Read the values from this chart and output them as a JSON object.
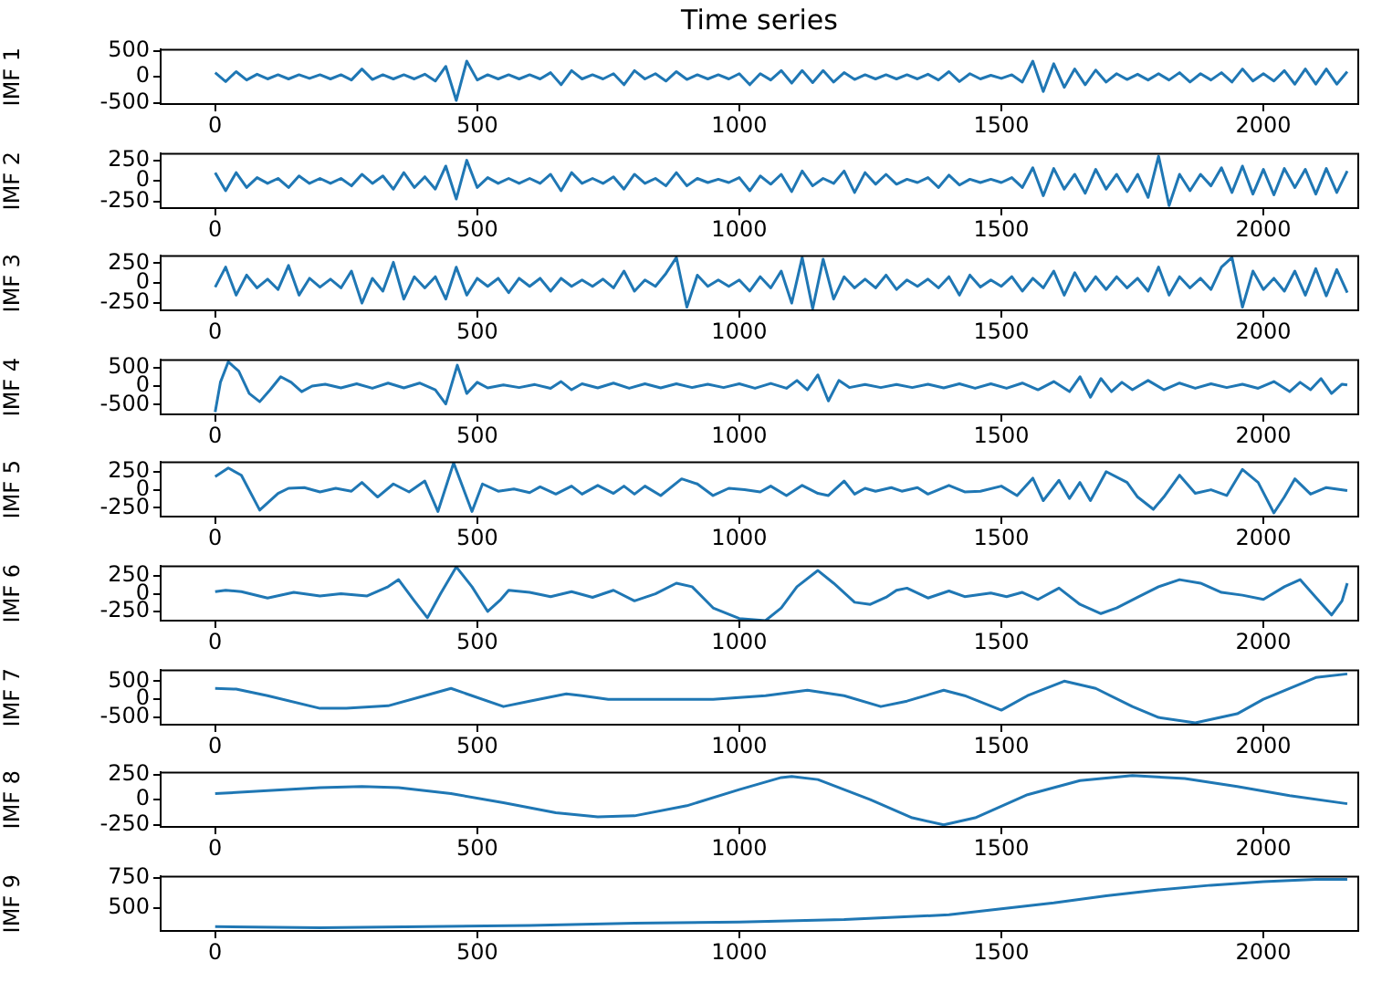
{
  "chart_data": [
    {
      "type": "line",
      "title": "Time series",
      "ylabel": "IMF 1",
      "color": "#1f77b4",
      "xlim": [
        -104,
        2181
      ],
      "xticks": [
        0,
        500,
        1000,
        1500,
        2000
      ],
      "ylim": [
        -520,
        520
      ],
      "yticks": [
        -500,
        0,
        500
      ],
      "x": [
        0,
        20,
        40,
        60,
        80,
        100,
        120,
        140,
        160,
        180,
        200,
        220,
        240,
        260,
        280,
        300,
        320,
        340,
        360,
        380,
        400,
        420,
        440,
        460,
        480,
        500,
        520,
        540,
        560,
        580,
        600,
        620,
        640,
        660,
        680,
        700,
        720,
        740,
        760,
        780,
        800,
        820,
        840,
        860,
        880,
        900,
        920,
        940,
        960,
        980,
        1000,
        1020,
        1040,
        1060,
        1080,
        1100,
        1120,
        1140,
        1160,
        1180,
        1200,
        1220,
        1240,
        1260,
        1280,
        1300,
        1320,
        1340,
        1360,
        1380,
        1400,
        1420,
        1440,
        1460,
        1480,
        1500,
        1520,
        1540,
        1560,
        1580,
        1600,
        1620,
        1640,
        1660,
        1680,
        1700,
        1720,
        1740,
        1760,
        1780,
        1800,
        1820,
        1840,
        1860,
        1880,
        1900,
        1920,
        1940,
        1960,
        1980,
        2000,
        2020,
        2040,
        2060,
        2080,
        2100,
        2120,
        2140,
        2160
      ],
      "values": [
        80,
        -90,
        100,
        -60,
        50,
        -40,
        40,
        -40,
        40,
        -30,
        40,
        -40,
        40,
        -60,
        150,
        -50,
        40,
        -40,
        40,
        -40,
        50,
        -80,
        200,
        -450,
        300,
        -60,
        40,
        -40,
        40,
        -40,
        40,
        -40,
        80,
        -150,
        120,
        -40,
        40,
        -40,
        60,
        -150,
        120,
        -40,
        60,
        -80,
        100,
        -50,
        40,
        -40,
        40,
        -40,
        60,
        -150,
        60,
        -60,
        120,
        -120,
        120,
        -110,
        120,
        -100,
        80,
        -50,
        40,
        -40,
        40,
        -40,
        40,
        -40,
        50,
        -60,
        100,
        -90,
        60,
        -40,
        30,
        -30,
        40,
        -100,
        300,
        -280,
        250,
        -200,
        150,
        -150,
        130,
        -100,
        60,
        -50,
        50,
        -60,
        60,
        -60,
        80,
        -100,
        60,
        -60,
        80,
        -100,
        150,
        -80,
        60,
        -80,
        120,
        -140,
        150,
        -140,
        150,
        -140,
        100
      ]
    },
    {
      "type": "line",
      "ylabel": "IMF 2",
      "color": "#1f77b4",
      "xlim": [
        -104,
        2181
      ],
      "xticks": [
        0,
        500,
        1000,
        1500,
        2000
      ],
      "ylim": [
        -330,
        330
      ],
      "yticks": [
        -250,
        0,
        250
      ],
      "x": [
        0,
        20,
        40,
        60,
        80,
        100,
        120,
        140,
        160,
        180,
        200,
        220,
        240,
        260,
        280,
        300,
        320,
        340,
        360,
        380,
        400,
        420,
        440,
        460,
        480,
        500,
        520,
        540,
        560,
        580,
        600,
        620,
        640,
        660,
        680,
        700,
        720,
        740,
        760,
        780,
        800,
        820,
        840,
        860,
        880,
        900,
        920,
        940,
        960,
        980,
        1000,
        1020,
        1040,
        1060,
        1080,
        1100,
        1120,
        1140,
        1160,
        1180,
        1200,
        1220,
        1240,
        1260,
        1280,
        1300,
        1320,
        1340,
        1360,
        1380,
        1400,
        1420,
        1440,
        1460,
        1480,
        1500,
        1520,
        1540,
        1560,
        1580,
        1600,
        1620,
        1640,
        1660,
        1680,
        1700,
        1720,
        1740,
        1760,
        1780,
        1800,
        1820,
        1840,
        1860,
        1880,
        1900,
        1920,
        1940,
        1960,
        1980,
        2000,
        2020,
        2040,
        2060,
        2080,
        2100,
        2120,
        2140,
        2160
      ],
      "values": [
        100,
        -120,
        100,
        -80,
        40,
        -30,
        30,
        -80,
        60,
        -30,
        30,
        -30,
        30,
        -60,
        80,
        -30,
        60,
        -100,
        100,
        -80,
        50,
        -100,
        180,
        -220,
        250,
        -80,
        40,
        -30,
        30,
        -30,
        30,
        -30,
        80,
        -120,
        100,
        -30,
        30,
        -30,
        50,
        -100,
        80,
        -30,
        30,
        -60,
        100,
        -60,
        30,
        -20,
        20,
        -20,
        40,
        -120,
        60,
        -40,
        80,
        -130,
        120,
        -60,
        30,
        -30,
        120,
        -140,
        100,
        -40,
        80,
        -40,
        20,
        -20,
        40,
        -80,
        70,
        -50,
        20,
        -20,
        20,
        -20,
        40,
        -80,
        160,
        -180,
        150,
        -100,
        80,
        -150,
        140,
        -100,
        80,
        -130,
        80,
        -200,
        300,
        -300,
        80,
        -120,
        80,
        -60,
        160,
        -140,
        180,
        -160,
        140,
        -170,
        150,
        -80,
        140,
        -160,
        150,
        -140,
        120
      ]
    },
    {
      "type": "line",
      "ylabel": "IMF 3",
      "color": "#1f77b4",
      "xlim": [
        -104,
        2181
      ],
      "xticks": [
        0,
        500,
        1000,
        1500,
        2000
      ],
      "ylim": [
        -340,
        340
      ],
      "yticks": [
        -250,
        0,
        250
      ],
      "x": [
        0,
        20,
        40,
        60,
        80,
        100,
        120,
        140,
        160,
        180,
        200,
        220,
        240,
        260,
        280,
        300,
        320,
        340,
        360,
        380,
        400,
        420,
        440,
        460,
        480,
        500,
        520,
        540,
        560,
        580,
        600,
        620,
        640,
        660,
        680,
        700,
        720,
        740,
        760,
        780,
        800,
        820,
        840,
        860,
        880,
        900,
        920,
        940,
        960,
        980,
        1000,
        1020,
        1040,
        1060,
        1080,
        1100,
        1120,
        1140,
        1160,
        1180,
        1200,
        1220,
        1240,
        1260,
        1280,
        1300,
        1320,
        1340,
        1360,
        1380,
        1400,
        1420,
        1440,
        1460,
        1480,
        1500,
        1520,
        1540,
        1560,
        1580,
        1600,
        1620,
        1640,
        1660,
        1680,
        1700,
        1720,
        1740,
        1760,
        1780,
        1800,
        1820,
        1840,
        1860,
        1880,
        1900,
        1920,
        1940,
        1960,
        1980,
        2000,
        2020,
        2040,
        2060,
        2080,
        2100,
        2120,
        2140,
        2160
      ],
      "values": [
        -50,
        200,
        -150,
        100,
        -60,
        50,
        -80,
        220,
        -150,
        60,
        -50,
        50,
        -60,
        150,
        -250,
        60,
        -100,
        260,
        -200,
        80,
        -60,
        80,
        -200,
        200,
        -150,
        60,
        -40,
        60,
        -120,
        60,
        -40,
        60,
        -100,
        60,
        -40,
        40,
        -40,
        50,
        -60,
        150,
        -100,
        40,
        -40,
        120,
        320,
        -300,
        100,
        -40,
        40,
        -40,
        40,
        -100,
        80,
        -60,
        150,
        -250,
        320,
        -320,
        300,
        -200,
        80,
        -60,
        50,
        -60,
        100,
        -80,
        40,
        -40,
        50,
        -60,
        80,
        -150,
        100,
        -50,
        40,
        -40,
        80,
        -100,
        60,
        -60,
        150,
        -150,
        130,
        -100,
        80,
        -80,
        80,
        -60,
        60,
        -100,
        200,
        -150,
        80,
        -60,
        60,
        -80,
        200,
        320,
        -300,
        150,
        -80,
        60,
        -100,
        150,
        -150,
        180,
        -160,
        170,
        -120
      ]
    },
    {
      "type": "line",
      "ylabel": "IMF 4",
      "color": "#1f77b4",
      "xlim": [
        -104,
        2181
      ],
      "xticks": [
        0,
        500,
        1000,
        1500,
        2000
      ],
      "ylim": [
        -760,
        700
      ],
      "yticks": [
        -500,
        0,
        500
      ],
      "x": [
        0,
        10,
        25,
        45,
        65,
        85,
        105,
        125,
        145,
        165,
        185,
        210,
        240,
        270,
        300,
        330,
        360,
        390,
        420,
        440,
        462,
        480,
        500,
        520,
        550,
        580,
        610,
        640,
        660,
        680,
        700,
        730,
        760,
        790,
        820,
        850,
        880,
        910,
        940,
        970,
        1000,
        1030,
        1060,
        1090,
        1110,
        1130,
        1150,
        1170,
        1190,
        1210,
        1240,
        1270,
        1300,
        1330,
        1360,
        1390,
        1420,
        1450,
        1480,
        1510,
        1540,
        1570,
        1600,
        1630,
        1650,
        1670,
        1690,
        1710,
        1730,
        1750,
        1780,
        1810,
        1840,
        1870,
        1900,
        1930,
        1960,
        1990,
        2020,
        2050,
        2070,
        2090,
        2110,
        2130,
        2150,
        2160
      ],
      "values": [
        -700,
        100,
        650,
        400,
        -200,
        -420,
        -100,
        250,
        100,
        -150,
        0,
        50,
        -50,
        60,
        -60,
        80,
        -50,
        80,
        -100,
        -480,
        560,
        -200,
        100,
        -50,
        30,
        -40,
        40,
        -60,
        120,
        -100,
        60,
        -50,
        80,
        -60,
        60,
        -50,
        60,
        -40,
        50,
        -40,
        60,
        -60,
        70,
        -60,
        150,
        -100,
        300,
        -400,
        150,
        -40,
        40,
        -40,
        40,
        -40,
        50,
        -50,
        60,
        -60,
        60,
        -60,
        80,
        -100,
        120,
        -150,
        250,
        -300,
        200,
        -150,
        100,
        -100,
        150,
        -100,
        80,
        -60,
        60,
        -40,
        50,
        -60,
        120,
        -150,
        100,
        -100,
        200,
        -200,
        50,
        30
      ]
    },
    {
      "type": "line",
      "ylabel": "IMF 5",
      "color": "#1f77b4",
      "xlim": [
        -104,
        2181
      ],
      "xticks": [
        0,
        500,
        1000,
        1500,
        2000
      ],
      "ylim": [
        -370,
        380
      ],
      "yticks": [
        -250,
        0,
        250
      ],
      "x": [
        0,
        25,
        50,
        85,
        120,
        140,
        170,
        200,
        230,
        260,
        280,
        310,
        340,
        370,
        400,
        425,
        455,
        490,
        510,
        540,
        570,
        600,
        620,
        650,
        680,
        700,
        730,
        760,
        780,
        800,
        820,
        850,
        890,
        920,
        950,
        980,
        1010,
        1040,
        1060,
        1090,
        1120,
        1150,
        1170,
        1200,
        1220,
        1240,
        1260,
        1290,
        1310,
        1340,
        1360,
        1400,
        1430,
        1460,
        1500,
        1530,
        1560,
        1580,
        1610,
        1630,
        1650,
        1670,
        1700,
        1740,
        1760,
        1790,
        1810,
        1840,
        1870,
        1900,
        1930,
        1960,
        1990,
        2020,
        2040,
        2060,
        2090,
        2120,
        2160
      ],
      "values": [
        180,
        300,
        200,
        -280,
        -50,
        20,
        30,
        -30,
        20,
        -20,
        100,
        -100,
        80,
        -30,
        120,
        -300,
        370,
        -300,
        80,
        -20,
        10,
        -40,
        40,
        -60,
        50,
        -60,
        60,
        -50,
        50,
        -60,
        50,
        -80,
        150,
        80,
        -80,
        20,
        0,
        -30,
        50,
        -80,
        60,
        -50,
        -80,
        120,
        -60,
        20,
        -20,
        30,
        -20,
        30,
        -60,
        60,
        -30,
        -20,
        50,
        -80,
        160,
        -150,
        130,
        -120,
        100,
        -150,
        250,
        100,
        -100,
        -270,
        -100,
        200,
        -50,
        0,
        -80,
        280,
        100,
        -320,
        -100,
        150,
        -60,
        30,
        -10
      ]
    },
    {
      "type": "line",
      "ylabel": "IMF 6",
      "color": "#1f77b4",
      "xlim": [
        -104,
        2181
      ],
      "xticks": [
        0,
        500,
        1000,
        1500,
        2000
      ],
      "ylim": [
        -380,
        390
      ],
      "yticks": [
        -250,
        0,
        250
      ],
      "x": [
        0,
        20,
        50,
        100,
        150,
        200,
        240,
        290,
        330,
        350,
        380,
        405,
        430,
        460,
        490,
        520,
        545,
        560,
        600,
        640,
        680,
        720,
        760,
        800,
        840,
        880,
        910,
        950,
        1000,
        1050,
        1080,
        1110,
        1150,
        1180,
        1220,
        1250,
        1280,
        1300,
        1320,
        1360,
        1400,
        1430,
        1480,
        1510,
        1540,
        1570,
        1610,
        1650,
        1690,
        1720,
        1760,
        1800,
        1840,
        1880,
        1920,
        1960,
        2000,
        2040,
        2070,
        2100,
        2130,
        2150,
        2160
      ],
      "values": [
        30,
        50,
        30,
        -60,
        20,
        -30,
        0,
        -30,
        100,
        200,
        -100,
        -340,
        0,
        380,
        100,
        -250,
        -80,
        50,
        20,
        -40,
        30,
        -50,
        50,
        -100,
        0,
        150,
        100,
        -200,
        -350,
        -380,
        -200,
        100,
        330,
        150,
        -120,
        -150,
        -50,
        50,
        80,
        -60,
        40,
        -40,
        10,
        -40,
        20,
        -80,
        80,
        -150,
        -280,
        -200,
        -50,
        100,
        200,
        150,
        20,
        -20,
        -80,
        100,
        200,
        -50,
        -300,
        -100,
        150
      ]
    },
    {
      "type": "line",
      "ylabel": "IMF 7",
      "color": "#1f77b4",
      "xlim": [
        -104,
        2181
      ],
      "xticks": [
        0,
        500,
        1000,
        1500,
        2000
      ],
      "ylim": [
        -700,
        800
      ],
      "yticks": [
        -500,
        0,
        500
      ],
      "x": [
        0,
        40,
        100,
        200,
        250,
        330,
        400,
        450,
        490,
        550,
        600,
        670,
        700,
        750,
        900,
        950,
        1050,
        1130,
        1200,
        1270,
        1320,
        1390,
        1430,
        1500,
        1550,
        1620,
        1680,
        1750,
        1800,
        1870,
        1950,
        2000,
        2100,
        2160
      ],
      "values": [
        300,
        280,
        100,
        -250,
        -250,
        -180,
        100,
        300,
        100,
        -200,
        -50,
        150,
        100,
        0,
        0,
        0,
        100,
        250,
        100,
        -200,
        -50,
        250,
        100,
        -300,
        100,
        500,
        300,
        -200,
        -500,
        -650,
        -400,
        0,
        600,
        700
      ]
    },
    {
      "type": "line",
      "ylabel": "IMF 8",
      "color": "#1f77b4",
      "xlim": [
        -104,
        2181
      ],
      "xticks": [
        0,
        500,
        1000,
        1500,
        2000
      ],
      "ylim": [
        -270,
        270
      ],
      "yticks": [
        -250,
        0,
        250
      ],
      "x": [
        0,
        100,
        200,
        280,
        350,
        450,
        550,
        650,
        730,
        800,
        900,
        1000,
        1080,
        1100,
        1150,
        1250,
        1330,
        1390,
        1450,
        1550,
        1650,
        1750,
        1850,
        1950,
        2050,
        2160
      ],
      "values": [
        60,
        90,
        120,
        130,
        120,
        60,
        -30,
        -130,
        -170,
        -160,
        -60,
        100,
        220,
        230,
        200,
        0,
        -180,
        -250,
        -180,
        50,
        190,
        240,
        210,
        130,
        40,
        -40
      ]
    },
    {
      "type": "line",
      "ylabel": "IMF 9",
      "color": "#1f77b4",
      "xlim": [
        -104,
        2181
      ],
      "xticks": [
        0,
        500,
        1000,
        1500,
        2000
      ],
      "ylim": [
        304,
        763
      ],
      "yticks": [
        500,
        750
      ],
      "x": [
        0,
        200,
        400,
        600,
        800,
        1000,
        1200,
        1400,
        1500,
        1600,
        1700,
        1800,
        1900,
        2000,
        2100,
        2160
      ],
      "values": [
        340,
        330,
        340,
        350,
        370,
        380,
        400,
        440,
        490,
        540,
        600,
        650,
        690,
        720,
        740,
        740
      ]
    }
  ]
}
